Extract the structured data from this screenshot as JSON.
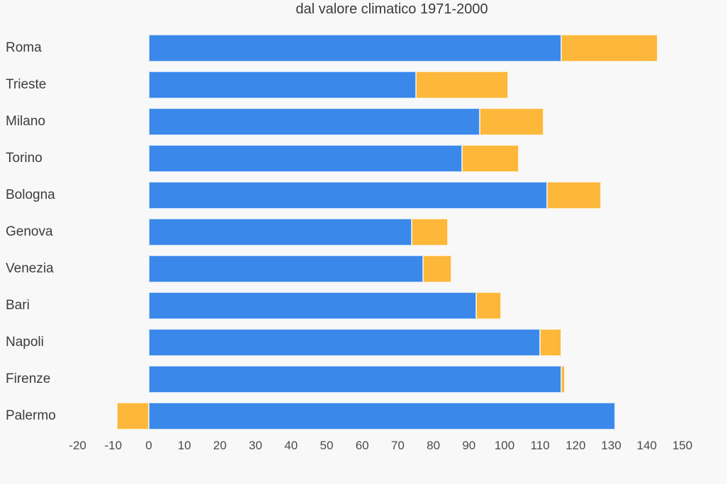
{
  "page": {
    "background": "#f8f8f8"
  },
  "chart_data": {
    "type": "bar",
    "orientation": "horizontal",
    "stacked": true,
    "title": "dal valore climatico 1971-2000",
    "categories": [
      "Roma",
      "Trieste",
      "Milano",
      "Torino",
      "Bologna",
      "Genova",
      "Venezia",
      "Bari",
      "Napoli",
      "Firenze",
      "Palermo"
    ],
    "series": [
      {
        "name": "blue",
        "color": "#3a88e9",
        "values": [
          116,
          75,
          93,
          88,
          112,
          74,
          77,
          92,
          110,
          116,
          131
        ]
      },
      {
        "name": "orange",
        "color": "#fdb83b",
        "values": [
          27,
          26,
          18,
          16,
          15,
          10,
          8,
          7,
          6,
          1,
          -9
        ]
      }
    ],
    "xticks": [
      -20,
      -10,
      0,
      10,
      20,
      30,
      40,
      50,
      60,
      70,
      80,
      90,
      100,
      110,
      120,
      130,
      140,
      150
    ],
    "xlim": [
      -24,
      158
    ],
    "grid": false,
    "legend": "none"
  }
}
